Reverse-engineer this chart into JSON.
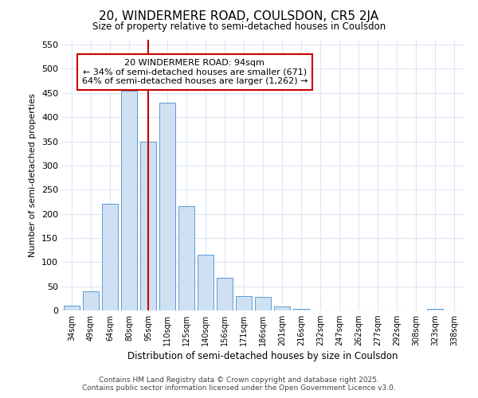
{
  "title1": "20, WINDERMERE ROAD, COULSDON, CR5 2JA",
  "title2": "Size of property relative to semi-detached houses in Coulsdon",
  "xlabel": "Distribution of semi-detached houses by size in Coulsdon",
  "ylabel": "Number of semi-detached properties",
  "categories": [
    "34sqm",
    "49sqm",
    "64sqm",
    "80sqm",
    "95sqm",
    "110sqm",
    "125sqm",
    "140sqm",
    "156sqm",
    "171sqm",
    "186sqm",
    "201sqm",
    "216sqm",
    "232sqm",
    "247sqm",
    "262sqm",
    "277sqm",
    "292sqm",
    "308sqm",
    "323sqm",
    "338sqm"
  ],
  "values": [
    10,
    40,
    220,
    455,
    350,
    430,
    215,
    115,
    68,
    30,
    28,
    8,
    3,
    0,
    0,
    0,
    0,
    0,
    0,
    3,
    0
  ],
  "bar_color": "#cfe0f3",
  "bar_edge_color": "#5b9bd5",
  "plot_bg_color": "#ffffff",
  "fig_bg_color": "#ffffff",
  "grid_color": "#dce8f5",
  "ylim": [
    0,
    560
  ],
  "yticks": [
    0,
    50,
    100,
    150,
    200,
    250,
    300,
    350,
    400,
    450,
    500,
    550
  ],
  "red_line_x": 4,
  "annotation_text_line1": "20 WINDERMERE ROAD: 94sqm",
  "annotation_text_line2": "← 34% of semi-detached houses are smaller (671)",
  "annotation_text_line3": "64% of semi-detached houses are larger (1,262) →",
  "footer_line1": "Contains HM Land Registry data © Crown copyright and database right 2025.",
  "footer_line2": "Contains public sector information licensed under the Open Government Licence v3.0."
}
